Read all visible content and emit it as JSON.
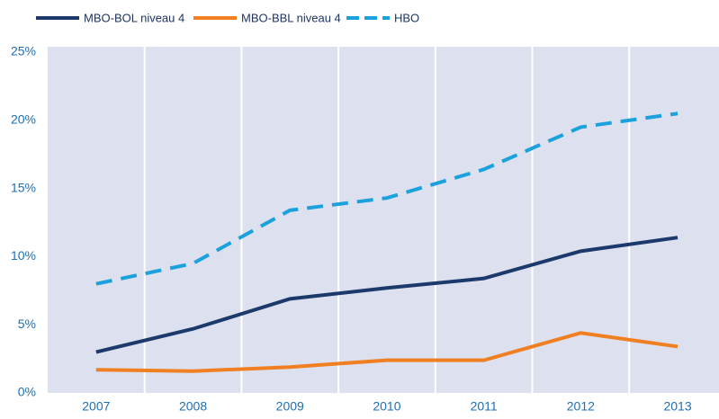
{
  "chart_data": {
    "type": "line",
    "categories": [
      "2007",
      "2008",
      "2009",
      "2010",
      "2011",
      "2012",
      "2013"
    ],
    "series": [
      {
        "name": "MBO-BOL niveau 4",
        "color": "#1b3a6b",
        "values": [
          3.0,
          4.7,
          6.9,
          7.7,
          8.4,
          10.4,
          11.4
        ]
      },
      {
        "name": "MBO-BBL niveau 4",
        "color": "#f07f22",
        "values": [
          1.7,
          1.6,
          1.9,
          2.4,
          2.4,
          4.4,
          3.4
        ]
      },
      {
        "name": "HBO",
        "color": "#1ba2dc",
        "dashed": true,
        "values": [
          8.0,
          9.5,
          13.4,
          14.3,
          16.4,
          19.5,
          20.5
        ]
      }
    ],
    "ylim": [
      0,
      25
    ],
    "yticks": [
      {
        "value": 0,
        "label": "0%"
      },
      {
        "value": 5,
        "label": "5%"
      },
      {
        "value": 10,
        "label": "10%"
      },
      {
        "value": 15,
        "label": "15%"
      },
      {
        "value": 20,
        "label": "20%"
      },
      {
        "value": 25,
        "label": "25%"
      }
    ],
    "grid": true,
    "legend": "top"
  }
}
